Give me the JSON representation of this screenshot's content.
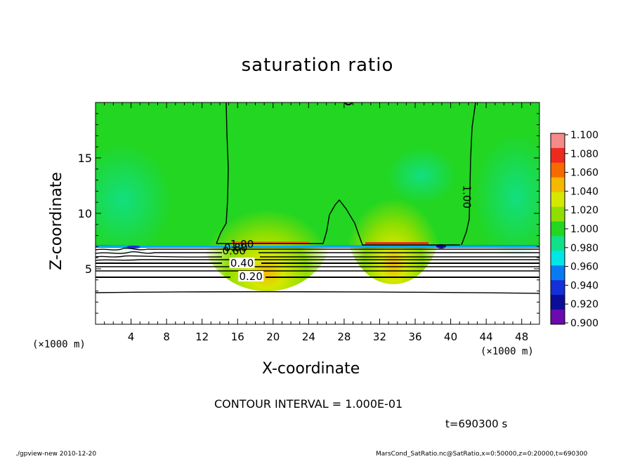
{
  "chart_data": {
    "type": "heatmap",
    "title": "saturation ratio",
    "xlabel": "X-coordinate",
    "ylabel": "Z-coordinate",
    "x_unit": "(×1000 m)",
    "xlim": [
      0,
      50
    ],
    "ylim": [
      0,
      20
    ],
    "x_ticks": [
      "4",
      "8",
      "12",
      "16",
      "20",
      "24",
      "28",
      "32",
      "36",
      "40",
      "44",
      "48"
    ],
    "y_ticks": [
      "5",
      "10",
      "15"
    ],
    "colorbar": {
      "levels": [
        "1.100",
        "1.080",
        "1.060",
        "1.040",
        "1.020",
        "1.000",
        "0.980",
        "0.960",
        "0.940",
        "0.920",
        "0.900"
      ],
      "colors": [
        "#f58a8a",
        "#ee2a1e",
        "#f76a00",
        "#f5b800",
        "#d4e800",
        "#8fde00",
        "#22d622",
        "#10e08a",
        "#00e6e6",
        "#0a7af2",
        "#1430d8",
        "#0c0c9a",
        "#6a0ab0"
      ]
    },
    "contour_labels": [
      {
        "text": "1.00",
        "x": 16.5,
        "z": 7.2
      },
      {
        "text": "0.80",
        "x": 15.8,
        "z": 6.9
      },
      {
        "text": "0.60",
        "x": 15.6,
        "z": 6.6
      },
      {
        "text": "0.40",
        "x": 16.5,
        "z": 5.5
      },
      {
        "text": "0.20",
        "x": 17.5,
        "z": 4.3
      },
      {
        "text": "1.00",
        "x": 41.8,
        "z": 11.5
      }
    ],
    "contour_interval": "CONTOUR INTERVAL = 1.000E-01",
    "time": "t=690300 s"
  },
  "footer": {
    "left": "./gpview-new   2010-12-20",
    "right": "MarsCond_SatRatio.nc@SatRatio,x=0:50000,z=0:20000,t=690300"
  }
}
